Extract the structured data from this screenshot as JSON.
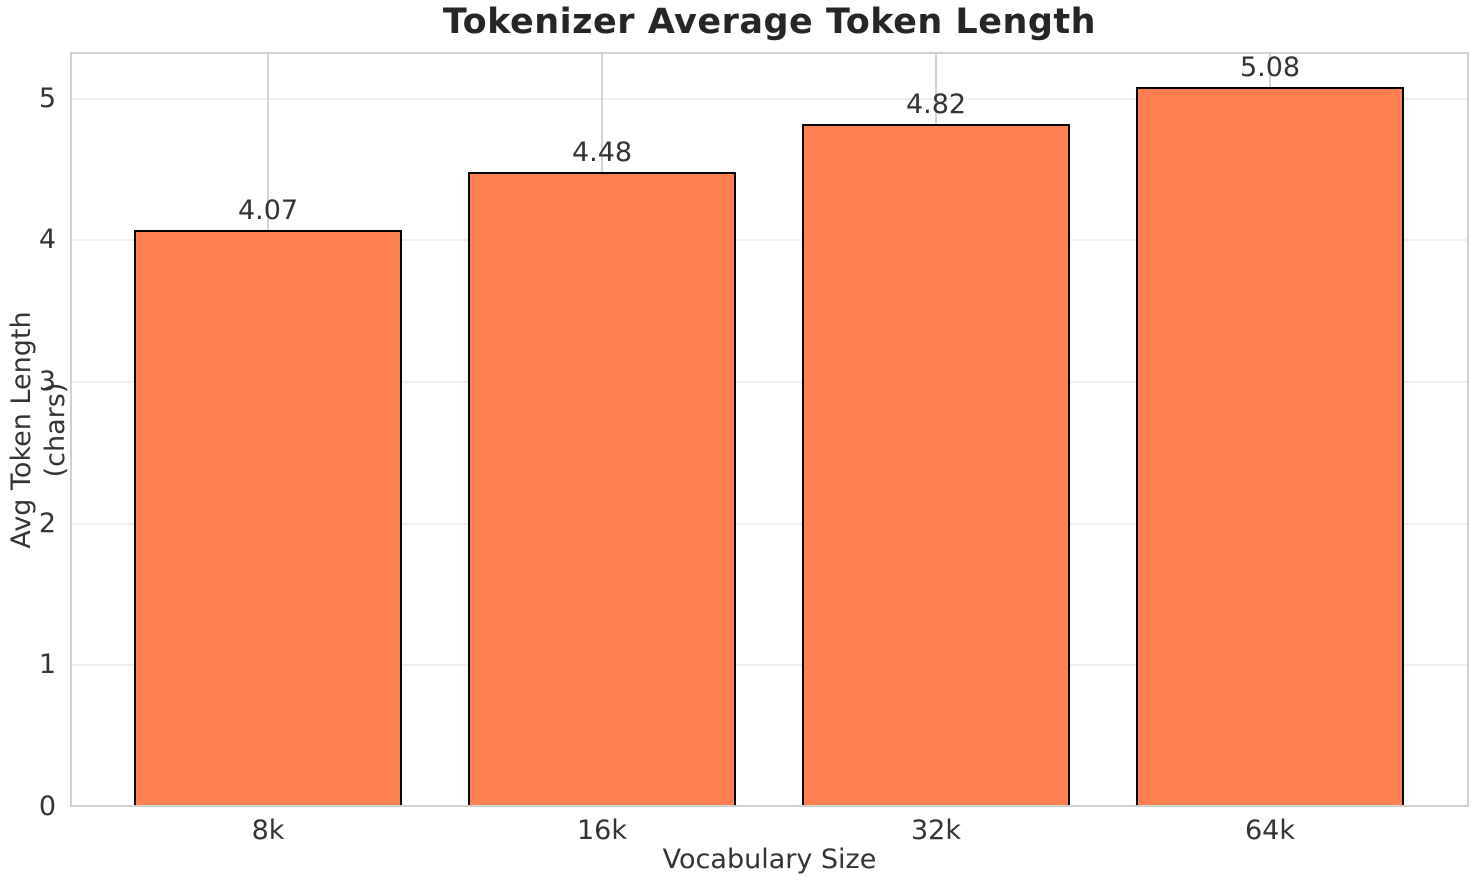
{
  "chart_data": {
    "type": "bar",
    "title": "Tokenizer Average Token Length",
    "xlabel": "Vocabulary Size",
    "ylabel": "Avg Token Length (chars)",
    "categories": [
      "8k",
      "16k",
      "32k",
      "64k"
    ],
    "values": [
      4.07,
      4.48,
      4.82,
      5.08
    ],
    "value_labels": [
      "4.07",
      "4.48",
      "4.82",
      "5.08"
    ],
    "yticks": [
      0,
      1,
      2,
      3,
      4,
      5
    ],
    "ylim": [
      0,
      5.33
    ],
    "grid": "on",
    "legend": "none",
    "bar_color": "#FF7F50",
    "bar_edge_color": "#000000",
    "colors": {
      "title_text": "#262626",
      "axis_text": "#333333",
      "spine": "#d0d0d0",
      "h_gridline": "#efefef",
      "v_gridline": "#d4d4d4",
      "background": "#ffffff"
    }
  }
}
